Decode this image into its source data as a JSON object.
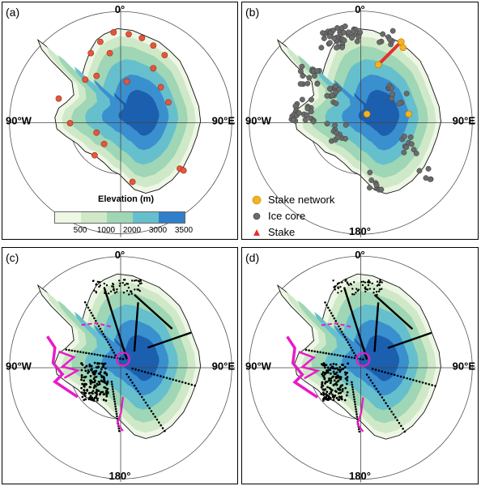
{
  "colors": {
    "elev": [
      "#eef7e6",
      "#cfe9c8",
      "#9fd6b5",
      "#66bfcc",
      "#3a8fcf",
      "#1c5fae"
    ],
    "stake_network": "#f4b31f",
    "ice_core": "#6b6b6b",
    "stake": "#e53030",
    "magenta": "#e81ac9",
    "transect": "#000000"
  },
  "panels": [
    {
      "label": "(a)",
      "top": "0°",
      "left": "90°W",
      "right": "90°E",
      "bottom": ""
    },
    {
      "label": "(b)",
      "top": "0°",
      "left": "90°W",
      "right": "90°E",
      "bottom": "180°"
    },
    {
      "label": "(c)",
      "top": "0°",
      "left": "90°W",
      "right": "90°E",
      "bottom": "180°"
    },
    {
      "label": "(d)",
      "top": "0°",
      "left": "90°W",
      "right": "90°E",
      "bottom": "180°"
    }
  ],
  "colorbar": {
    "title": "Elevation (m)",
    "ticks": [
      "500",
      "1000",
      "2000",
      "3000",
      "3500"
    ]
  },
  "legend": [
    {
      "label": "Stake network",
      "icon": "orange-sphere-icon"
    },
    {
      "label": "Ice core",
      "icon": "gray-sphere-icon"
    },
    {
      "label": "Stake",
      "icon": "red-triangle-icon"
    }
  ]
}
